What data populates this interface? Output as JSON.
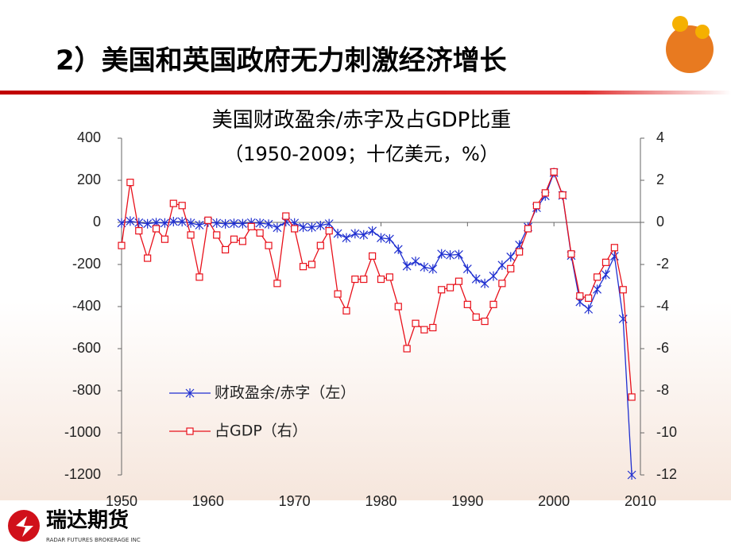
{
  "header": {
    "title": "2）美国和英国政府无力刺激经济增长"
  },
  "logo": {
    "name": "瑞达期货",
    "subtitle": "RADAR FUTURES BROKERAGE INC"
  },
  "chart_data": {
    "type": "line",
    "title": "美国财政盈余/赤字及占GDP比重",
    "subtitle": "（1950-2009；十亿美元，%）",
    "x": [
      1950,
      1951,
      1952,
      1953,
      1954,
      1955,
      1956,
      1957,
      1958,
      1959,
      1960,
      1961,
      1962,
      1963,
      1964,
      1965,
      1966,
      1967,
      1968,
      1969,
      1970,
      1971,
      1972,
      1973,
      1974,
      1975,
      1976,
      1977,
      1978,
      1979,
      1980,
      1981,
      1982,
      1983,
      1984,
      1985,
      1986,
      1987,
      1988,
      1989,
      1990,
      1991,
      1992,
      1993,
      1994,
      1995,
      1996,
      1997,
      1998,
      1999,
      2000,
      2001,
      2002,
      2003,
      2004,
      2005,
      2006,
      2007,
      2008,
      2009
    ],
    "series": [
      {
        "name": "财政盈余/赤字（左）",
        "color": "#1f2fd0",
        "marker": "star",
        "values": [
          -3,
          6,
          -1.5,
          -6.5,
          -1.2,
          -3,
          3.9,
          3.4,
          -2.8,
          -12.8,
          0.3,
          -3.3,
          -7.1,
          -4.8,
          -5.9,
          -1.4,
          -3.7,
          -8.6,
          -25.2,
          3.2,
          -2.8,
          -23,
          -23.4,
          -14.9,
          -6.1,
          -53.2,
          -73.7,
          -53.7,
          -59.2,
          -40.7,
          -73.8,
          -79,
          -128,
          -207.8,
          -185.4,
          -212.3,
          -221.2,
          -149.7,
          -155.2,
          -152.6,
          -221,
          -269.2,
          -290.3,
          -255.1,
          -203.2,
          -164,
          -107.4,
          -21.9,
          69.3,
          125.6,
          236.2,
          128.2,
          -157.8,
          -377.6,
          -412.7,
          -318.3,
          -248.2,
          -160.7,
          -458.6,
          -1200
        ]
      },
      {
        "name": "占GDP（右）",
        "color": "#e8101a",
        "marker": "square",
        "axis": "y2",
        "values": [
          -1.1,
          1.9,
          -0.4,
          -1.7,
          -0.3,
          -0.8,
          0.9,
          0.8,
          -0.6,
          -2.6,
          0.1,
          -0.6,
          -1.3,
          -0.8,
          -0.9,
          -0.2,
          -0.5,
          -1.1,
          -2.9,
          0.3,
          -0.3,
          -2.1,
          -2,
          -1.1,
          -0.4,
          -3.4,
          -4.2,
          -2.7,
          -2.7,
          -1.6,
          -2.7,
          -2.6,
          -4,
          -6,
          -4.8,
          -5.1,
          -5,
          -3.2,
          -3.1,
          -2.8,
          -3.9,
          -4.5,
          -4.7,
          -3.9,
          -2.9,
          -2.2,
          -1.4,
          -0.3,
          0.8,
          1.4,
          2.4,
          1.3,
          -1.5,
          -3.5,
          -3.6,
          -2.6,
          -1.9,
          -1.2,
          -3.2,
          -8.3
        ]
      }
    ],
    "xlim": [
      1950,
      2010
    ],
    "xticks": [
      1950,
      1960,
      1970,
      1980,
      1990,
      2000,
      2010
    ],
    "ylim": [
      -1200,
      400
    ],
    "yticks": [
      400,
      200,
      0,
      -200,
      -400,
      -600,
      -800,
      -1000,
      -1200
    ],
    "y2lim": [
      -12,
      4
    ],
    "y2ticks": [
      4,
      2,
      0,
      -2,
      -4,
      -6,
      -8,
      -10,
      -12
    ]
  }
}
